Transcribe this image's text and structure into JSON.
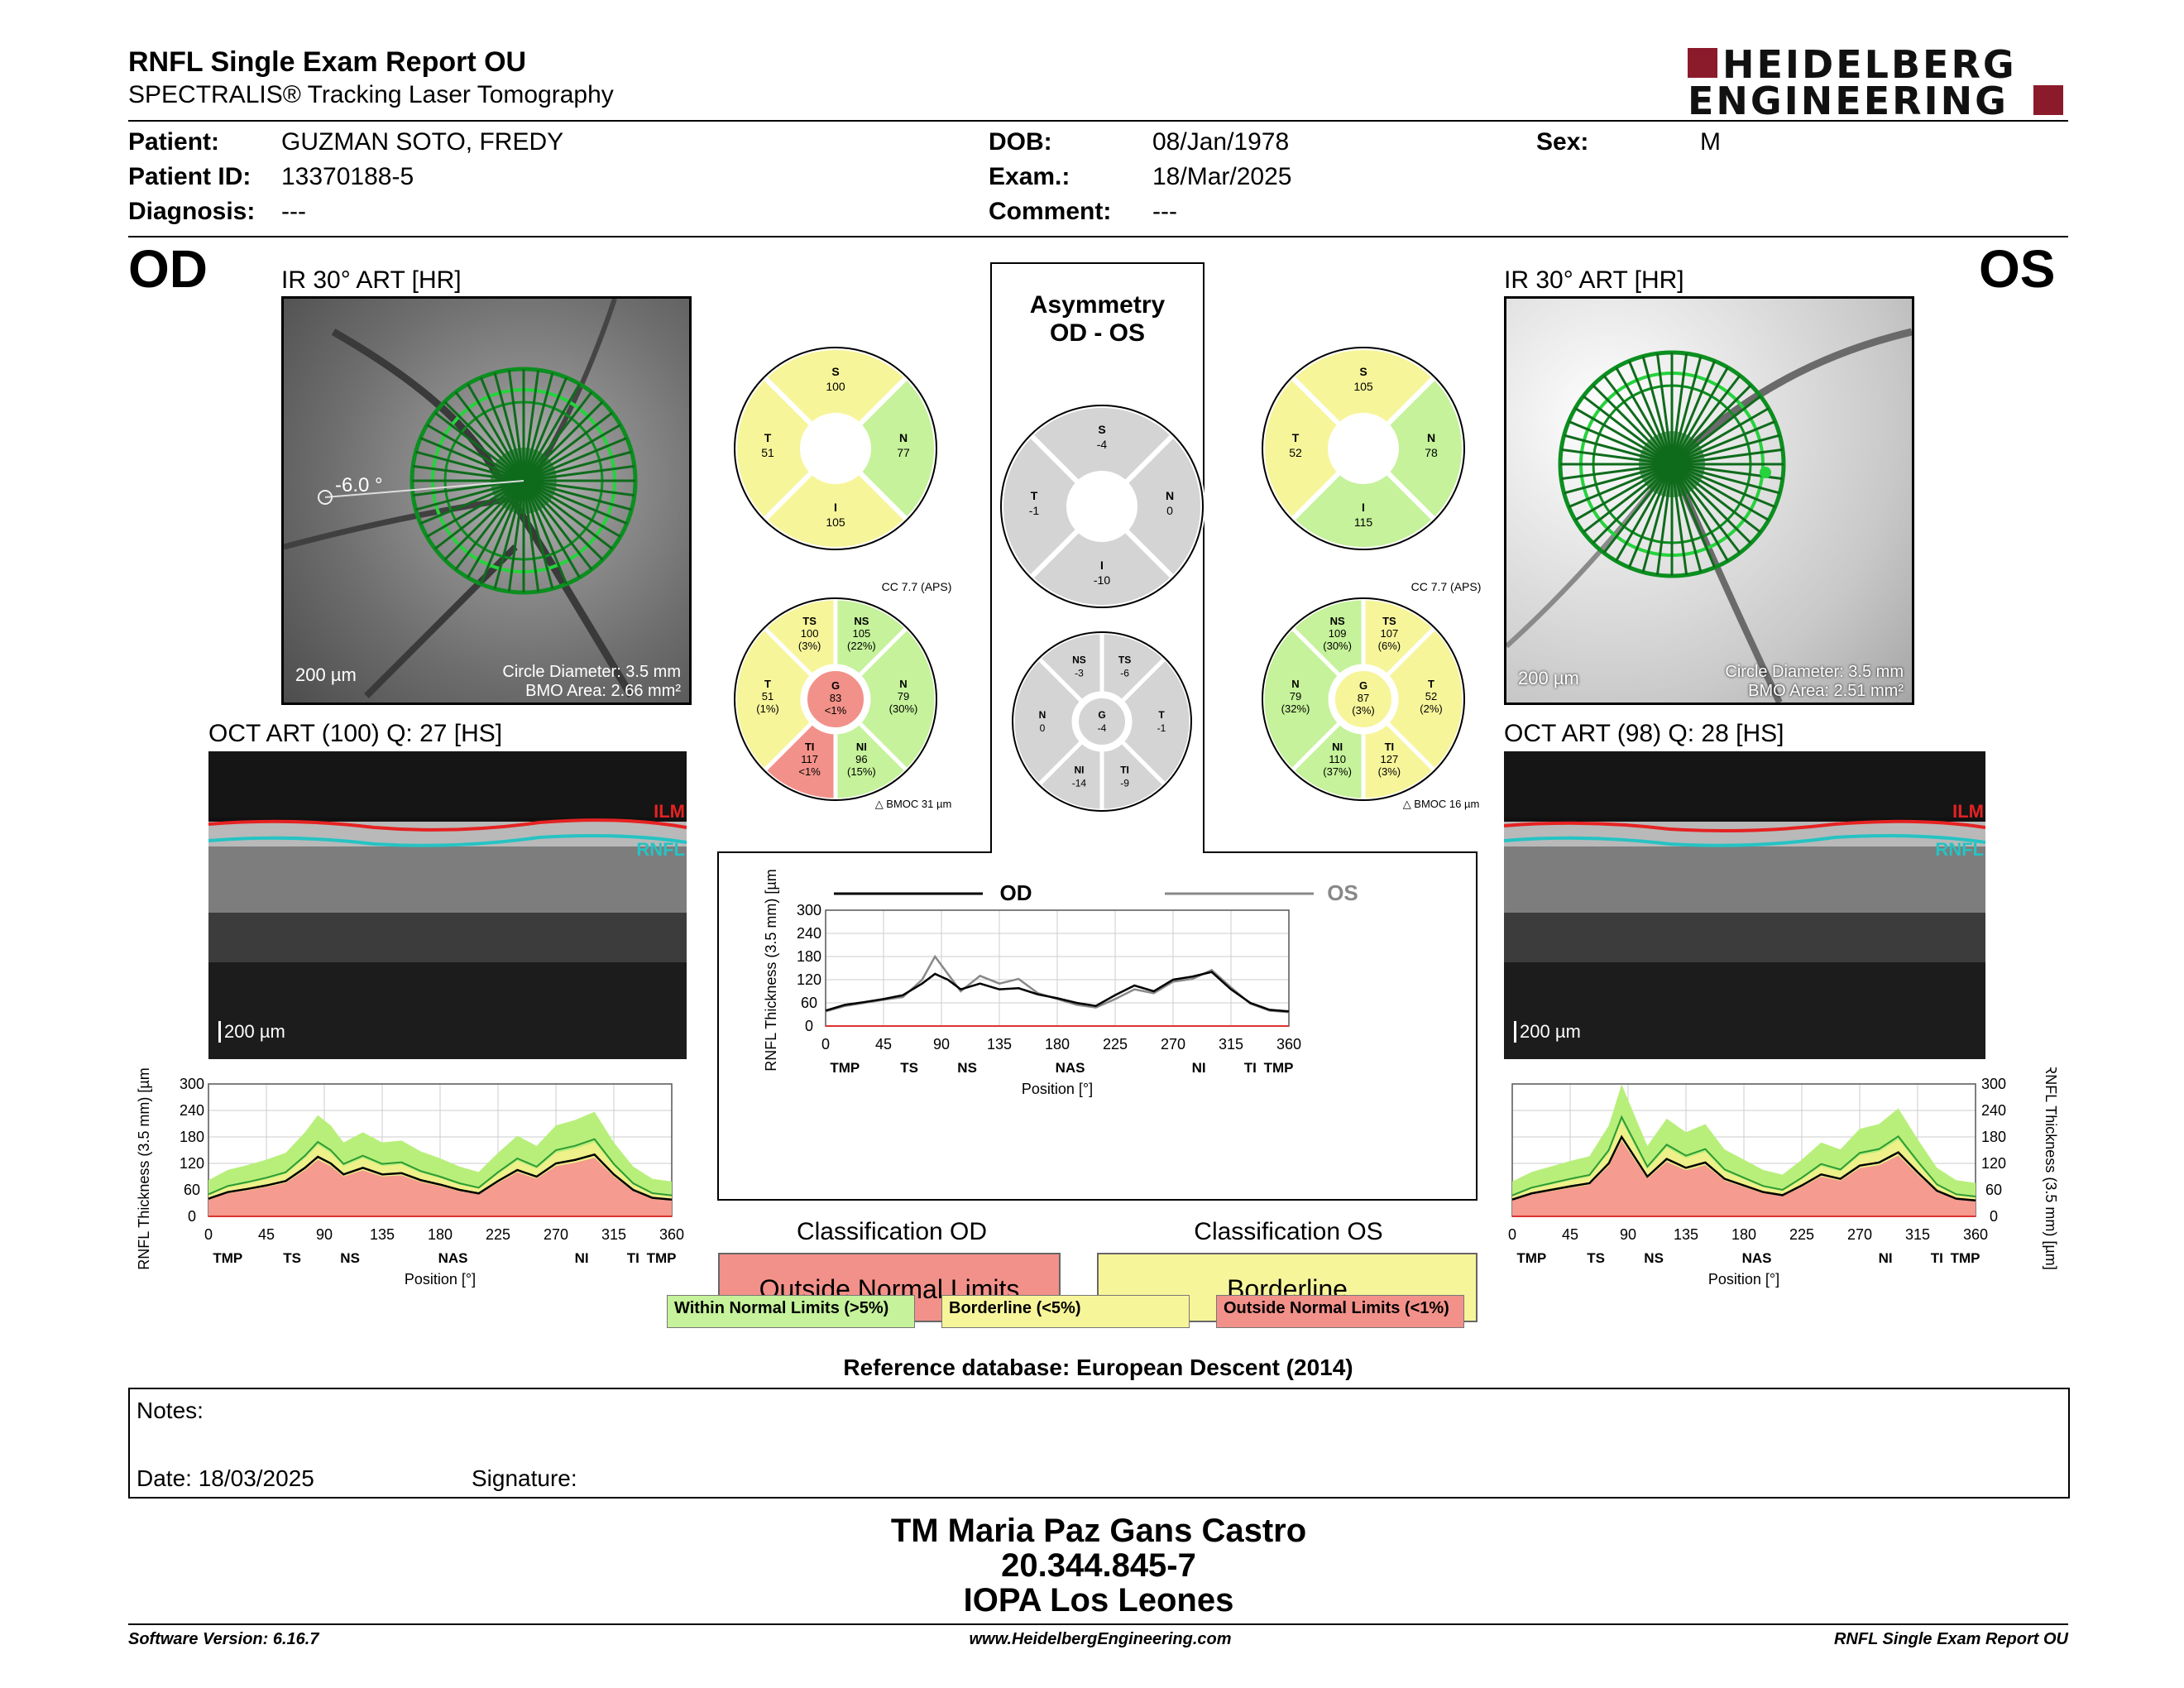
{
  "header": {
    "title": "RNFL Single Exam Report OU",
    "subtitle": "SPECTRALIS® Tracking Laser Tomography",
    "logo_line1": "HEIDELBERG",
    "logo_line2": "ENGINEERING"
  },
  "patient": {
    "patient_label": "Patient:",
    "patient_value": "GUZMAN SOTO, FREDY",
    "id_label": "Patient ID:",
    "id_value": "13370188-5",
    "diag_label": "Diagnosis:",
    "diag_value": "---",
    "dob_label": "DOB:",
    "dob_value": "08/Jan/1978",
    "exam_label": "Exam.:",
    "exam_value": "18/Mar/2025",
    "comment_label": "Comment:",
    "comment_value": "---",
    "sex_label": "Sex:",
    "sex_value": "M"
  },
  "od": {
    "eye": "OD",
    "ir_caption": "IR 30° ART [HR]",
    "angle": "-6.0 °",
    "scale": "200 µm",
    "circle_diameter": "Circle Diameter: 3.5 mm",
    "bmo_area": "BMO Area: 2.66 mm²",
    "oct_caption": "OCT ART (100) Q: 27 [HS]",
    "oct_scale": "200 µm",
    "ilm": "ILM",
    "rnfl": "RNFL"
  },
  "os": {
    "eye": "OS",
    "ir_caption": "IR 30° ART [HR]",
    "scale": "200 µm",
    "circle_diameter": "Circle Diameter: 3.5 mm",
    "bmo_area": "BMO Area: 2.51 mm²",
    "oct_caption": "OCT ART (98) Q: 28 [HS]",
    "oct_scale": "200 µm",
    "ilm": "ILM",
    "rnfl": "RNFL"
  },
  "asymmetry": {
    "title1": "Asymmetry",
    "title2": "OD - OS"
  },
  "sectors": {
    "od_quad": {
      "S": "100",
      "N": "77",
      "I": "105",
      "T": "51"
    },
    "os_quad": {
      "S": "105",
      "N": "78",
      "I": "115",
      "T": "52"
    },
    "asym_quad": {
      "S": "-4",
      "N": "0",
      "I": "-10",
      "T": "-1"
    },
    "od_cc": "CC 7.7 (APS)",
    "os_cc": "CC 7.7 (APS)",
    "od_bmoc": "BMOC 31 µm",
    "os_bmoc": "BMOC 16 µm",
    "od_six": {
      "TS": [
        "TS",
        "100",
        "(3%)"
      ],
      "NS": [
        "NS",
        "105",
        "(22%)"
      ],
      "T": [
        "T",
        "51",
        "(1%)"
      ],
      "G": [
        "G",
        "83",
        "<1%"
      ],
      "N": [
        "N",
        "79",
        "(30%)"
      ],
      "TI": [
        "TI",
        "117",
        "<1%"
      ],
      "NI": [
        "NI",
        "96",
        "(15%)"
      ]
    },
    "os_six": {
      "NS": [
        "NS",
        "109",
        "(30%)"
      ],
      "TS": [
        "TS",
        "107",
        "(6%)"
      ],
      "N": [
        "N",
        "79",
        "(32%)"
      ],
      "G": [
        "G",
        "87",
        "(3%)"
      ],
      "T": [
        "T",
        "52",
        "(2%)"
      ],
      "NI": [
        "NI",
        "110",
        "(37%)"
      ],
      "TI": [
        "TI",
        "127",
        "(3%)"
      ]
    },
    "asym_six": {
      "NS": [
        "NS",
        "-3"
      ],
      "TS": [
        "TS",
        "-6"
      ],
      "N": [
        "N",
        "0"
      ],
      "G": [
        "G",
        "-4"
      ],
      "T": [
        "T",
        "-1"
      ],
      "NI": [
        "NI",
        "-14"
      ],
      "TI": [
        "TI",
        "-9"
      ]
    }
  },
  "colors": {
    "green": "#c5f29a",
    "yellow": "#f7f59a",
    "red": "#f2918a",
    "gray": "#d4d4d4"
  },
  "chart_data": [
    {
      "type": "line",
      "name_od_legend": "OD",
      "name_os_legend": "OS",
      "ylabel": "RNFL Thickness (3.5 mm) [µm]",
      "xlabel": "Position [°]",
      "yticks": [
        "300",
        "240",
        "180",
        "120",
        "60",
        "0"
      ],
      "xticks": [
        "0",
        "45",
        "90",
        "135",
        "180",
        "225",
        "270",
        "315",
        "360"
      ],
      "sector_labels": [
        "TMP",
        "TS",
        "NS",
        "NAS",
        "NI",
        "TI",
        "TMP"
      ],
      "ylim": [
        0,
        300
      ],
      "xlim": [
        0,
        360
      ],
      "series": [
        {
          "name": "OD",
          "x": [
            0,
            15,
            30,
            45,
            60,
            75,
            85,
            95,
            105,
            120,
            135,
            150,
            165,
            180,
            195,
            210,
            225,
            240,
            255,
            270,
            285,
            300,
            315,
            330,
            345,
            360
          ],
          "y": [
            40,
            55,
            62,
            70,
            80,
            110,
            135,
            120,
            95,
            110,
            95,
            98,
            82,
            72,
            60,
            52,
            80,
            105,
            90,
            120,
            128,
            140,
            95,
            60,
            42,
            38
          ]
        },
        {
          "name": "OS",
          "x": [
            0,
            15,
            30,
            45,
            60,
            75,
            85,
            95,
            105,
            120,
            135,
            150,
            165,
            180,
            195,
            210,
            225,
            240,
            255,
            270,
            285,
            300,
            315,
            330,
            345,
            360
          ],
          "y": [
            38,
            52,
            60,
            68,
            75,
            120,
            180,
            135,
            90,
            130,
            110,
            122,
            85,
            70,
            55,
            48,
            70,
            95,
            85,
            115,
            122,
            145,
            100,
            58,
            40,
            36
          ]
        }
      ]
    },
    {
      "type": "area",
      "ylabel": "RNFL Thickness (3.5 mm) [µm]",
      "xlabel": "Position [°]",
      "yticks": [
        "300",
        "240",
        "180",
        "120",
        "60",
        "0"
      ],
      "xticks": [
        "0",
        "45",
        "90",
        "135",
        "180",
        "225",
        "270",
        "315",
        "360"
      ],
      "sector_labels": [
        "TMP",
        "TS",
        "NS",
        "NAS",
        "NI",
        "TI",
        "TMP"
      ],
      "ylim": [
        0,
        300
      ],
      "series": [
        {
          "name": "OD",
          "x": [
            0,
            15,
            30,
            45,
            60,
            75,
            85,
            95,
            105,
            120,
            135,
            150,
            165,
            180,
            195,
            210,
            225,
            240,
            255,
            270,
            285,
            300,
            315,
            330,
            345,
            360
          ],
          "y": [
            40,
            55,
            62,
            70,
            80,
            110,
            135,
            120,
            95,
            110,
            95,
            98,
            82,
            72,
            60,
            52,
            80,
            105,
            90,
            120,
            128,
            140,
            95,
            60,
            42,
            38
          ]
        }
      ]
    },
    {
      "type": "area",
      "ylabel": "RNFL Thickness (3.5 mm) [µm]",
      "xlabel": "Position [°]",
      "yticks": [
        "300",
        "240",
        "180",
        "120",
        "60",
        "0"
      ],
      "xticks": [
        "0",
        "45",
        "90",
        "135",
        "180",
        "225",
        "270",
        "315",
        "360"
      ],
      "sector_labels": [
        "TMP",
        "TS",
        "NS",
        "NAS",
        "NI",
        "TI",
        "TMP"
      ],
      "ylim": [
        0,
        300
      ],
      "series": [
        {
          "name": "OS",
          "x": [
            0,
            15,
            30,
            45,
            60,
            75,
            85,
            95,
            105,
            120,
            135,
            150,
            165,
            180,
            195,
            210,
            225,
            240,
            255,
            270,
            285,
            300,
            315,
            330,
            345,
            360
          ],
          "y": [
            38,
            52,
            60,
            68,
            75,
            120,
            180,
            135,
            90,
            130,
            110,
            122,
            85,
            70,
            55,
            48,
            70,
            95,
            85,
            115,
            122,
            145,
            100,
            58,
            40,
            36
          ]
        }
      ]
    }
  ],
  "classification": {
    "od_title": "Classification OD",
    "od_value": "Outside Normal Limits",
    "os_title": "Classification OS",
    "os_value": "Borderline",
    "legend_green": "Within Normal Limits (>5%)",
    "legend_yellow": "Borderline (<5%)",
    "legend_red": "Outside Normal Limits (<1%)",
    "reference": "Reference database: European Descent (2014)"
  },
  "notes": {
    "notes_label": "Notes:",
    "date_label": "Date: 18/03/2025",
    "signature_label": "Signature:"
  },
  "signature": {
    "name": "TM Maria Paz Gans Castro",
    "id": "20.344.845-7",
    "place": "IOPA Los Leones"
  },
  "footer": {
    "version": "Software Version: 6.16.7",
    "url": "www.HeidelbergEngineering.com",
    "report": "RNFL Single Exam Report OU"
  }
}
